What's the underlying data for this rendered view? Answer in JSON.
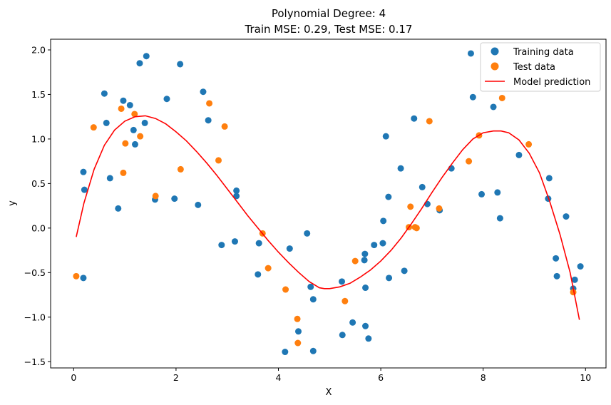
{
  "chart_data": {
    "type": "scatter",
    "title": "Polynomial Degree: 4",
    "subtitle": "Train MSE: 0.29, Test MSE: 0.17",
    "xlabel": "X",
    "ylabel": "y",
    "xlim": [
      -0.45,
      10.4
    ],
    "ylim": [
      -1.57,
      2.12
    ],
    "x_ticks": [
      0,
      2,
      4,
      6,
      8,
      10
    ],
    "y_ticks": [
      -1.5,
      -1.0,
      -0.5,
      0.0,
      0.5,
      1.0,
      1.5,
      2.0
    ],
    "x_tick_labels": [
      "0",
      "2",
      "4",
      "6",
      "8",
      "10"
    ],
    "y_tick_labels": [
      "−1.5",
      "−1.0",
      "−0.5",
      "0.0",
      "0.5",
      "1.0",
      "1.5",
      "2.0"
    ],
    "grid": false,
    "legend_position": "top-right",
    "series": [
      {
        "name": "Training data",
        "kind": "scatter",
        "color": "#1f77b4",
        "points": [
          [
            0.19,
            -0.56
          ],
          [
            0.19,
            0.63
          ],
          [
            0.21,
            0.43
          ],
          [
            0.6,
            1.51
          ],
          [
            0.64,
            1.18
          ],
          [
            0.71,
            0.56
          ],
          [
            0.87,
            0.22
          ],
          [
            0.97,
            1.43
          ],
          [
            1.1,
            1.38
          ],
          [
            1.17,
            1.1
          ],
          [
            1.2,
            0.94
          ],
          [
            1.29,
            1.85
          ],
          [
            1.39,
            1.18
          ],
          [
            1.42,
            1.93
          ],
          [
            1.59,
            0.32
          ],
          [
            1.82,
            1.45
          ],
          [
            1.97,
            0.33
          ],
          [
            2.08,
            1.84
          ],
          [
            2.43,
            0.26
          ],
          [
            2.53,
            1.53
          ],
          [
            2.63,
            1.21
          ],
          [
            2.89,
            -0.19
          ],
          [
            3.15,
            -0.15
          ],
          [
            3.18,
            0.42
          ],
          [
            3.18,
            0.36
          ],
          [
            3.6,
            -0.52
          ],
          [
            3.62,
            -0.17
          ],
          [
            4.13,
            -1.39
          ],
          [
            4.22,
            -0.23
          ],
          [
            4.39,
            -1.16
          ],
          [
            4.56,
            -0.06
          ],
          [
            4.63,
            -0.66
          ],
          [
            4.68,
            -0.8
          ],
          [
            4.68,
            -1.38
          ],
          [
            5.24,
            -0.6
          ],
          [
            5.25,
            -1.2
          ],
          [
            5.45,
            -1.06
          ],
          [
            5.68,
            -0.36
          ],
          [
            5.69,
            -0.29
          ],
          [
            5.7,
            -0.67
          ],
          [
            5.7,
            -1.1
          ],
          [
            5.76,
            -1.24
          ],
          [
            5.87,
            -0.19
          ],
          [
            6.04,
            -0.17
          ],
          [
            6.05,
            0.08
          ],
          [
            6.1,
            1.03
          ],
          [
            6.15,
            0.35
          ],
          [
            6.16,
            -0.56
          ],
          [
            6.39,
            0.67
          ],
          [
            6.46,
            -0.48
          ],
          [
            6.65,
            1.23
          ],
          [
            6.81,
            0.46
          ],
          [
            6.91,
            0.27
          ],
          [
            7.15,
            0.2
          ],
          [
            7.38,
            0.67
          ],
          [
            7.76,
            1.96
          ],
          [
            7.8,
            1.47
          ],
          [
            7.97,
            0.38
          ],
          [
            8.2,
            1.36
          ],
          [
            8.28,
            0.4
          ],
          [
            8.33,
            0.11
          ],
          [
            8.7,
            0.82
          ],
          [
            9.27,
            0.33
          ],
          [
            9.29,
            0.56
          ],
          [
            9.42,
            -0.34
          ],
          [
            9.44,
            -0.54
          ],
          [
            9.62,
            0.13
          ],
          [
            9.76,
            -0.68
          ],
          [
            9.79,
            -0.58
          ],
          [
            9.9,
            -0.43
          ]
        ]
      },
      {
        "name": "Test data",
        "kind": "scatter",
        "color": "#ff7f0e",
        "points": [
          [
            0.05,
            -0.54
          ],
          [
            0.39,
            1.13
          ],
          [
            0.93,
            1.34
          ],
          [
            0.97,
            0.62
          ],
          [
            1.01,
            0.95
          ],
          [
            1.19,
            1.28
          ],
          [
            1.3,
            1.03
          ],
          [
            1.6,
            0.36
          ],
          [
            2.09,
            0.66
          ],
          [
            2.65,
            1.4
          ],
          [
            2.83,
            0.76
          ],
          [
            2.95,
            1.14
          ],
          [
            3.69,
            -0.06
          ],
          [
            3.8,
            -0.45
          ],
          [
            4.14,
            -0.69
          ],
          [
            4.37,
            -1.02
          ],
          [
            4.38,
            -1.29
          ],
          [
            5.3,
            -0.82
          ],
          [
            5.5,
            -0.37
          ],
          [
            6.55,
            0.01
          ],
          [
            6.58,
            0.24
          ],
          [
            6.67,
            0.01
          ],
          [
            6.7,
            0.0
          ],
          [
            6.95,
            1.2
          ],
          [
            7.14,
            0.22
          ],
          [
            7.72,
            0.75
          ],
          [
            7.92,
            1.04
          ],
          [
            8.37,
            1.46
          ],
          [
            8.89,
            0.94
          ],
          [
            9.76,
            -0.72
          ]
        ]
      },
      {
        "name": "Model prediction",
        "kind": "line",
        "color": "#ff0000",
        "points": [
          [
            0.05,
            -0.1
          ],
          [
            0.2,
            0.28
          ],
          [
            0.4,
            0.66
          ],
          [
            0.6,
            0.93
          ],
          [
            0.8,
            1.1
          ],
          [
            1.0,
            1.2
          ],
          [
            1.2,
            1.25
          ],
          [
            1.4,
            1.26
          ],
          [
            1.6,
            1.23
          ],
          [
            1.8,
            1.17
          ],
          [
            2.0,
            1.08
          ],
          [
            2.2,
            0.98
          ],
          [
            2.4,
            0.86
          ],
          [
            2.6,
            0.73
          ],
          [
            2.8,
            0.59
          ],
          [
            3.0,
            0.44
          ],
          [
            3.2,
            0.29
          ],
          [
            3.4,
            0.14
          ],
          [
            3.6,
            0.0
          ],
          [
            3.8,
            -0.14
          ],
          [
            4.0,
            -0.27
          ],
          [
            4.2,
            -0.39
          ],
          [
            4.4,
            -0.5
          ],
          [
            4.6,
            -0.6
          ],
          [
            4.8,
            -0.67
          ],
          [
            4.9,
            -0.68
          ],
          [
            5.0,
            -0.68
          ],
          [
            5.2,
            -0.66
          ],
          [
            5.4,
            -0.62
          ],
          [
            5.6,
            -0.55
          ],
          [
            5.8,
            -0.47
          ],
          [
            6.0,
            -0.37
          ],
          [
            6.2,
            -0.25
          ],
          [
            6.4,
            -0.11
          ],
          [
            6.6,
            0.05
          ],
          [
            6.8,
            0.22
          ],
          [
            7.0,
            0.4
          ],
          [
            7.2,
            0.57
          ],
          [
            7.4,
            0.73
          ],
          [
            7.6,
            0.88
          ],
          [
            7.8,
            1.0
          ],
          [
            8.0,
            1.07
          ],
          [
            8.2,
            1.09
          ],
          [
            8.35,
            1.09
          ],
          [
            8.5,
            1.07
          ],
          [
            8.7,
            0.99
          ],
          [
            8.9,
            0.84
          ],
          [
            9.1,
            0.62
          ],
          [
            9.3,
            0.3
          ],
          [
            9.5,
            -0.07
          ],
          [
            9.7,
            -0.5
          ],
          [
            9.88,
            -1.03
          ]
        ]
      }
    ]
  }
}
